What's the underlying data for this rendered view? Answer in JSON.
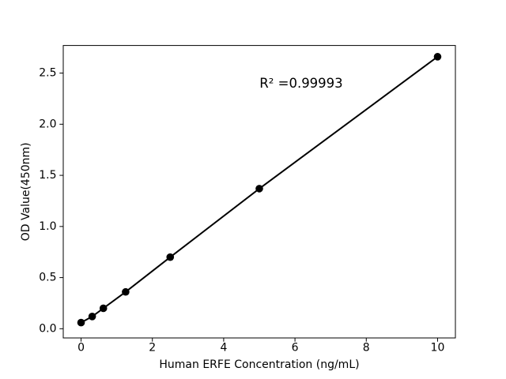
{
  "figure": {
    "background": "#ffffff",
    "foreground": "#000000"
  },
  "chart_data": {
    "type": "line",
    "title": "",
    "xlabel": "Human ERFE Concentration (ng/mL)",
    "ylabel": "OD Value(450nm)",
    "annotation": "R² =0.99993",
    "series": [
      {
        "name": "standard-curve",
        "x": [
          0,
          0.3125,
          0.625,
          1.25,
          2.5,
          5,
          10
        ],
        "y": [
          0.06,
          0.12,
          0.2,
          0.36,
          0.7,
          1.37,
          2.66
        ],
        "line_color": "#000000",
        "marker": "circle-filled",
        "marker_color": "#000000"
      }
    ],
    "xtick_labels": [
      "0",
      "2",
      "4",
      "6",
      "8",
      "10"
    ],
    "xtick_values": [
      0,
      2,
      4,
      6,
      8,
      10
    ],
    "ytick_labels": [
      "0.0",
      "0.5",
      "1.0",
      "1.5",
      "2.0",
      "2.5"
    ],
    "ytick_values": [
      0,
      0.5,
      1.0,
      1.5,
      2.0,
      2.5
    ],
    "xlim": [
      -0.5,
      10.5
    ],
    "ylim": [
      -0.09,
      2.77
    ],
    "grid": false,
    "legend": null,
    "frame": "box"
  }
}
